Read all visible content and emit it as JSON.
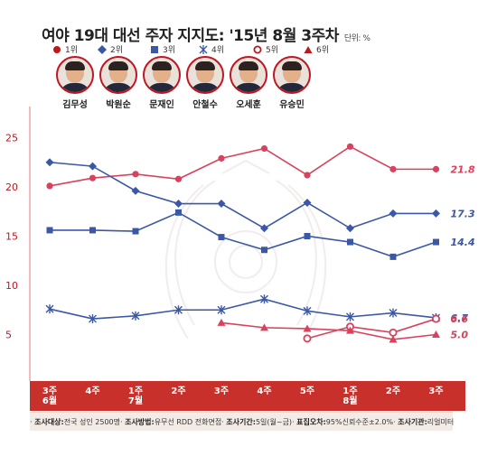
{
  "header": {
    "title": "여야 19대 대선 주자 지지도: '15년 8월 3주차",
    "unit": "단위: %"
  },
  "legend": [
    {
      "label": "1위",
      "color": "#c0161f",
      "marker": "filled-circle"
    },
    {
      "label": "2위",
      "color": "#3b58a6",
      "marker": "filled-diamond"
    },
    {
      "label": "3위",
      "color": "#3b58a6",
      "marker": "filled-square"
    },
    {
      "label": "4위",
      "color": "#3b58a6",
      "marker": "asterisk"
    },
    {
      "label": "5위",
      "color": "#c0161f",
      "marker": "open-circle"
    },
    {
      "label": "6위",
      "color": "#c0161f",
      "marker": "filled-triangle"
    }
  ],
  "candidates": [
    {
      "name": "김무성"
    },
    {
      "name": "박원순"
    },
    {
      "name": "문재인"
    },
    {
      "name": "안철수"
    },
    {
      "name": "오세훈"
    },
    {
      "name": "유승민"
    }
  ],
  "chart_data": {
    "type": "line",
    "title": "여야 19대 대선 주자 지지도: '15년 8월 3주차",
    "unit": "단위: %",
    "categories": [
      "3주 6월",
      "4주",
      "1주 7월",
      "2주",
      "3주",
      "4주",
      "5주",
      "1주 8월",
      "2주",
      "3주"
    ],
    "ylim": [
      0,
      27
    ],
    "yticks": [
      5,
      10,
      15,
      20,
      25
    ],
    "grid": false,
    "legend_position": "top",
    "series": [
      {
        "name": "김무성",
        "color": "#d9415c",
        "marker": "filled-circle",
        "values": [
          20.1,
          20.9,
          21.3,
          20.8,
          22.9,
          23.9,
          21.2,
          24.1,
          21.8,
          21.8
        ],
        "end_label": "21.8"
      },
      {
        "name": "박원순",
        "color": "#3b58a6",
        "marker": "filled-diamond",
        "values": [
          22.5,
          22.1,
          19.6,
          18.3,
          18.3,
          15.8,
          18.4,
          15.8,
          17.3,
          17.3
        ],
        "end_label": "17.3"
      },
      {
        "name": "문재인",
        "color": "#3b58a6",
        "marker": "filled-square",
        "values": [
          15.6,
          15.6,
          15.5,
          17.4,
          14.9,
          13.6,
          15.0,
          14.4,
          12.9,
          14.4
        ],
        "end_label": "14.4"
      },
      {
        "name": "안철수",
        "color": "#3b58a6",
        "marker": "asterisk",
        "values": [
          7.6,
          6.6,
          6.9,
          7.5,
          7.5,
          8.6,
          7.4,
          6.8,
          7.2,
          6.7
        ],
        "end_label": "6.7"
      },
      {
        "name": "오세훈",
        "color": "#d9415c",
        "marker": "open-circle",
        "values": [
          null,
          null,
          null,
          null,
          null,
          null,
          4.6,
          5.8,
          5.2,
          6.6
        ],
        "end_label": "6.6"
      },
      {
        "name": "유승민",
        "color": "#d9415c",
        "marker": "filled-triangle",
        "values": [
          null,
          null,
          null,
          null,
          6.2,
          5.7,
          5.6,
          5.4,
          4.5,
          5.0
        ],
        "end_label": "5.0"
      }
    ]
  },
  "footer": {
    "items": [
      {
        "key": "조사대상:",
        "value": "전국 성인 2500명"
      },
      {
        "key": "조사방법:",
        "value": "유무선 RDD 전화면접"
      },
      {
        "key": "조사기간:",
        "value": "5일(월~금)"
      },
      {
        "key": "표집오차:",
        "value": "95%신뢰수준±2.0%"
      },
      {
        "key": "조사기관:",
        "value": "리얼미터"
      }
    ]
  },
  "colors": {
    "accent_red": "#c0161f",
    "line_red": "#d9415c",
    "line_blue": "#3b58a6",
    "category_band": "#c8302b",
    "axis_text": "#c0161f"
  }
}
